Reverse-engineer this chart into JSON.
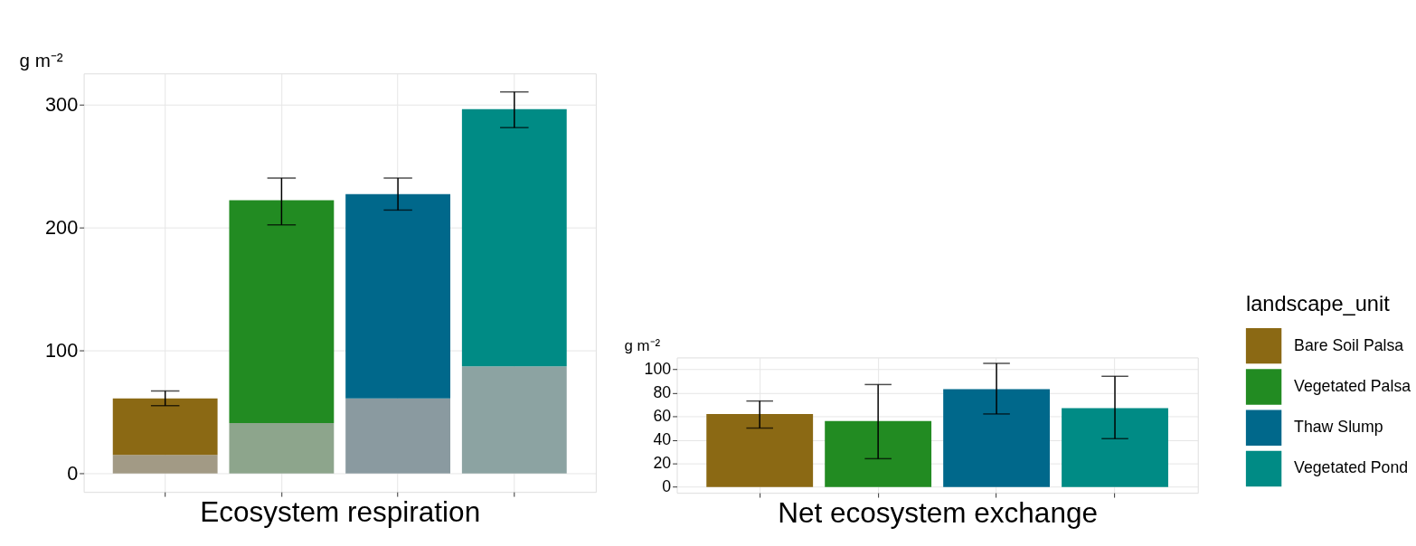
{
  "chart_data": [
    {
      "type": "bar",
      "stacked": true,
      "xlabel": "Ecosystem respiration",
      "ylabel": "g m⁻²",
      "categories": [
        null,
        null,
        null,
        null
      ],
      "series": [
        {
          "colors": [
            "#a29a85",
            "#8da58c",
            "#8a9aa0",
            "#8ca3a2"
          ],
          "values": [
            15,
            41,
            61,
            87
          ]
        },
        {
          "name": "Bare Soil Palsa",
          "color": "#8b6914",
          "values": [
            46,
            null,
            null,
            null
          ],
          "errors": [
            [
              55,
              67
            ],
            null,
            null,
            null
          ]
        },
        {
          "name": "Vegetated Palsa",
          "color": "#228b22",
          "values": [
            null,
            181,
            null,
            null
          ],
          "errors": [
            null,
            [
              202,
              240
            ],
            null,
            null
          ]
        },
        {
          "name": "Thaw Slump",
          "color": "#00688b",
          "values": [
            null,
            null,
            166,
            null
          ],
          "errors": [
            null,
            null,
            [
              214,
              240
            ],
            null
          ]
        },
        {
          "name": "Vegetated Pond",
          "color": "#008b85",
          "values": [
            null,
            null,
            null,
            209
          ],
          "errors": [
            null,
            null,
            null,
            [
              281,
              310
            ]
          ]
        }
      ],
      "ylim": [
        -15,
        325
      ],
      "yticks": [
        0,
        100,
        200,
        300
      ],
      "grid": true,
      "legend": "right"
    },
    {
      "type": "bar",
      "xlabel": "Net ecosystem exchange",
      "ylabel": "g m⁻²",
      "legend_title": "landscape_unit",
      "categories": [
        null,
        null,
        null,
        null
      ],
      "series": [
        {
          "name": "Bare Soil Palsa",
          "color": "#8b6914",
          "values": [
            62,
            null,
            null,
            null
          ],
          "errors": [
            [
              50,
              73
            ],
            null,
            null,
            null
          ]
        },
        {
          "name": "Vegetated Palsa",
          "color": "#228b22",
          "values": [
            null,
            56,
            null,
            null
          ],
          "errors": [
            null,
            [
              24,
              87
            ],
            null,
            null
          ]
        },
        {
          "name": "Thaw Slump",
          "color": "#00688b",
          "values": [
            null,
            null,
            83,
            null
          ],
          "errors": [
            null,
            null,
            [
              62,
              105
            ],
            null
          ]
        },
        {
          "name": "Vegetated Pond",
          "color": "#008b85",
          "values": [
            null,
            null,
            null,
            67
          ],
          "errors": [
            null,
            null,
            null,
            [
              41,
              94
            ]
          ]
        }
      ],
      "ylim": [
        -5,
        110
      ],
      "yticks": [
        0,
        20,
        40,
        60,
        80,
        100
      ],
      "grid": true,
      "legend": "right"
    }
  ]
}
